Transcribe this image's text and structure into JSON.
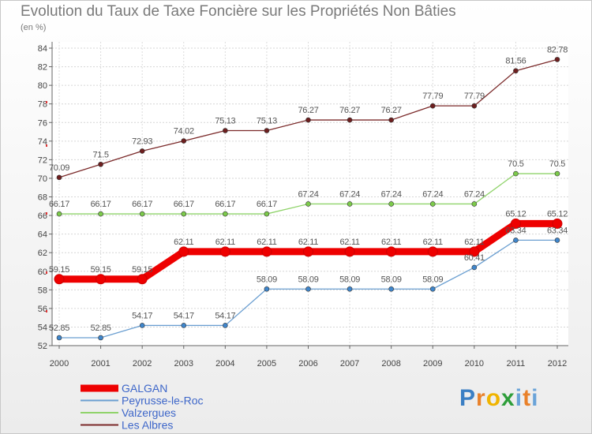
{
  "title": "Evolution du Taux de Taxe Foncière sur les Propriétés Non Bâties",
  "subtitle": "(en %)",
  "logo": {
    "l1": "P",
    "l2": "r",
    "l3": "o",
    "l4": "x",
    "l5": "i",
    "l6": "t",
    "l7": "i"
  },
  "chart_data": {
    "type": "line",
    "categories": [
      "2000",
      "2001",
      "2002",
      "2003",
      "2004",
      "2005",
      "2006",
      "2007",
      "2008",
      "2009",
      "2010",
      "2011",
      "2012"
    ],
    "ylim": [
      52,
      84
    ],
    "yticks": [
      52,
      54,
      56,
      58,
      60,
      62,
      64,
      66,
      68,
      70,
      72,
      74,
      76,
      78,
      80,
      82,
      84
    ],
    "grid": true,
    "series": [
      {
        "name": "Les Albres",
        "color": "#7b2a2a",
        "dot": "#6e1f1f",
        "values": [
          70.09,
          71.5,
          72.93,
          74.02,
          75.13,
          75.13,
          76.27,
          76.27,
          76.27,
          77.79,
          77.79,
          81.56,
          82.78
        ],
        "labels": [
          "70.09",
          "71.5",
          "72.93",
          "74.02",
          "75.13",
          "75.13",
          "76.27",
          "76.27",
          "76.27",
          "77.79",
          "77.79",
          "81.56",
          "82.78"
        ]
      },
      {
        "name": "Valzergues",
        "color": "#8fd36a",
        "dot": "#7ccb4a",
        "values": [
          66.17,
          66.17,
          66.17,
          66.17,
          66.17,
          66.17,
          67.24,
          67.24,
          67.24,
          67.24,
          67.24,
          70.5,
          70.5
        ],
        "labels": [
          "66.17",
          "66.17",
          "66.17",
          "66.17",
          "66.17",
          "66.17",
          "67.24",
          "67.24",
          "67.24",
          "67.24",
          "67.24",
          "70.5",
          "70.5"
        ]
      },
      {
        "name": "GALGAN",
        "color": "#ee0000",
        "dot": "#ee0000",
        "values": [
          59.15,
          59.15,
          59.15,
          62.11,
          62.11,
          62.11,
          62.11,
          62.11,
          62.11,
          62.11,
          62.11,
          65.12,
          65.12
        ],
        "labels": [
          "59.15",
          "59.15",
          "59.15",
          "62.11",
          "62.11",
          "62.11",
          "62.11",
          "62.11",
          "62.11",
          "62.11",
          "62.11",
          "65.12",
          "65.12"
        ]
      },
      {
        "name": "Peyrusse-le-Roc",
        "color": "#6b9fd1",
        "dot": "#3f86cc",
        "values": [
          52.85,
          52.85,
          54.17,
          54.17,
          54.17,
          58.09,
          58.09,
          58.09,
          58.09,
          58.09,
          60.41,
          63.34,
          63.34
        ],
        "labels": [
          "52.85",
          "52.85",
          "54.17",
          "54.17",
          "54.17",
          "58.09",
          "58.09",
          "58.09",
          "58.09",
          "58.09",
          "60.41",
          "63.34",
          "63.34"
        ]
      }
    ],
    "legend": [
      "GALGAN",
      "Peyrusse-le-Roc",
      "Valzergues",
      "Les Albres"
    ],
    "legend_position": "bottom-left"
  }
}
